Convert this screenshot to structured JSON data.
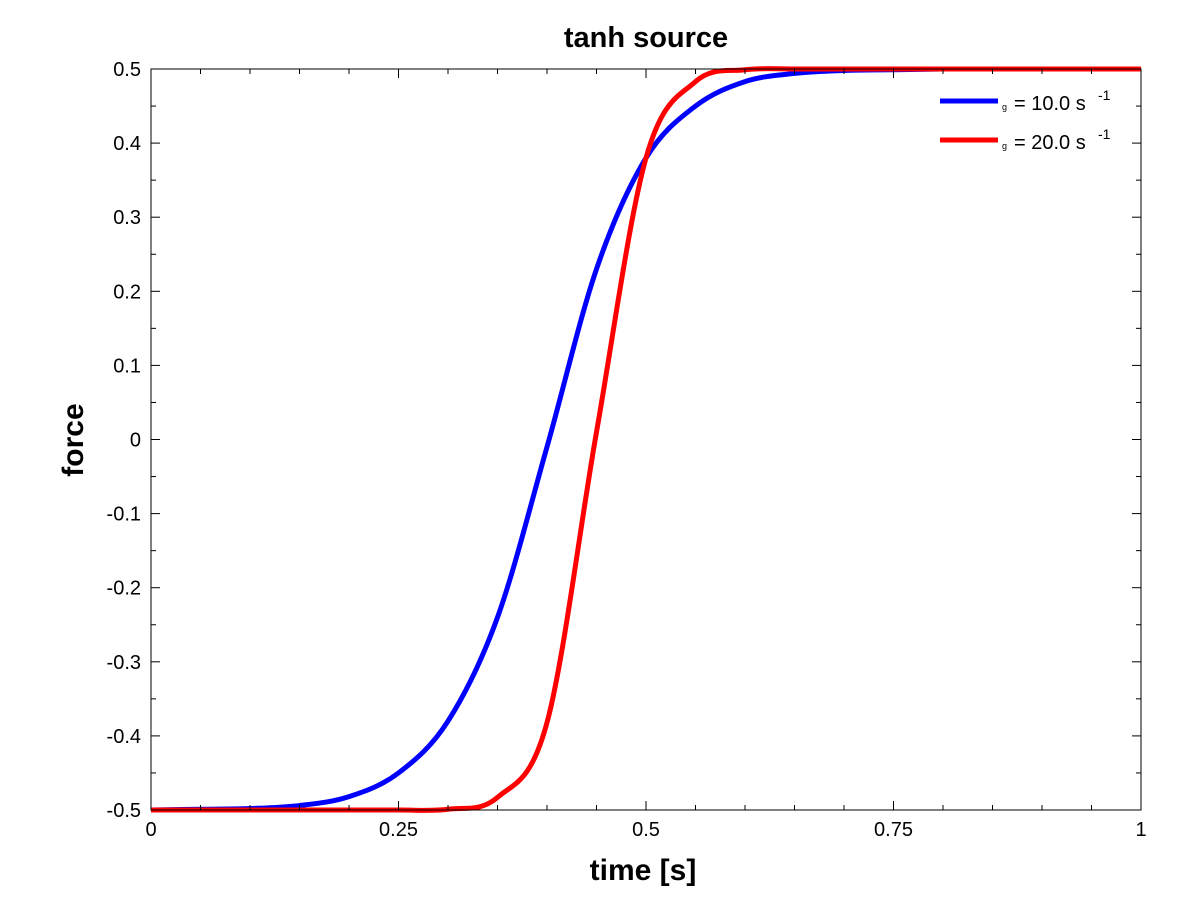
{
  "chart_data": {
    "type": "line",
    "title": "tanh source",
    "xlabel": "time [s]",
    "ylabel": "force",
    "xlim": [
      0,
      1
    ],
    "ylim": [
      -0.5,
      0.5
    ],
    "xticks": [
      0,
      0.25,
      0.5,
      0.75,
      1
    ],
    "xtick_labels": [
      "0",
      "0.25",
      "0.5",
      "0.75",
      "1"
    ],
    "yticks": [
      -0.5,
      -0.4,
      -0.3,
      -0.2,
      -0.1,
      0,
      0.1,
      0.2,
      0.3,
      0.4,
      0.5
    ],
    "ytick_labels": [
      "-0.5",
      "-0.4",
      "-0.3",
      "-0.2",
      "-0.1",
      "0",
      "0.1",
      "0.2",
      "0.3",
      "0.4",
      "0.5"
    ],
    "grid": false,
    "legend_position": "top-right",
    "x": [
      0,
      0.05,
      0.1,
      0.15,
      0.2,
      0.25,
      0.3,
      0.35,
      0.4,
      0.45,
      0.5,
      0.55,
      0.6,
      0.65,
      0.7,
      0.75,
      0.8,
      0.85,
      0.9,
      0.95,
      1
    ],
    "series": [
      {
        "legend_sub": "g",
        "legend_main": "= 10.0 s",
        "legend_sup": "-1",
        "color": "#0000ff",
        "values": [
          -0.5,
          -0.499,
          -0.498,
          -0.494,
          -0.482,
          -0.45,
          -0.38,
          -0.24,
          -0.01,
          0.23,
          0.38,
          0.45,
          0.483,
          0.494,
          0.498,
          0.499,
          0.5,
          0.5,
          0.5,
          0.5,
          0.5
        ]
      },
      {
        "legend_sub": "g",
        "legend_main": "= 20.0 s",
        "legend_sup": "-1",
        "color": "#ff0000",
        "values": [
          -0.5,
          -0.5,
          -0.5,
          -0.5,
          -0.5,
          -0.5,
          -0.499,
          -0.483,
          -0.382,
          0.01,
          0.38,
          0.483,
          0.499,
          0.5,
          0.5,
          0.5,
          0.5,
          0.5,
          0.5,
          0.5,
          0.5
        ]
      }
    ]
  }
}
